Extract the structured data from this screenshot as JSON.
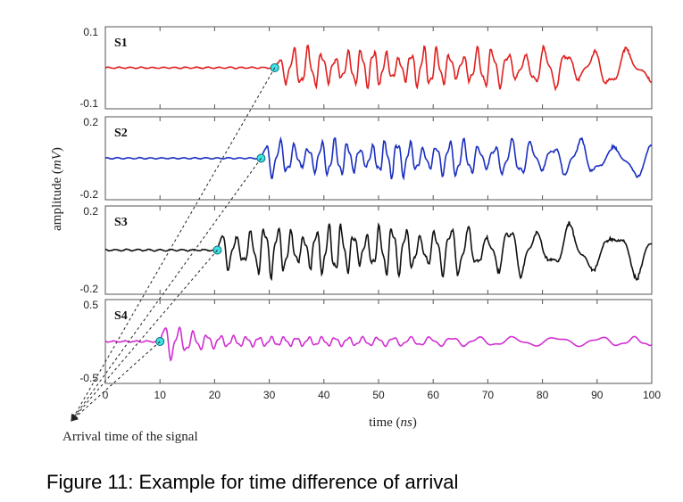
{
  "caption": "Figure 11: Example for time difference of arrival",
  "chart_data": {
    "type": "line",
    "xlabel": "time (ns)",
    "xlabel_main": "time",
    "xlabel_unit": "ns",
    "ylabel": "amplitude (mV)",
    "ylabel_main": "amplitude",
    "ylabel_unit": "mV",
    "xlim": [
      0,
      100
    ],
    "x_ticks": [
      "0",
      "10",
      "20",
      "30",
      "40",
      "50",
      "60",
      "70",
      "80",
      "90",
      "100"
    ],
    "annotation": "Arrival time of the signal",
    "panels": [
      {
        "name": "S1",
        "color": "#e02020",
        "ylim": [
          -0.1,
          0.1
        ],
        "y_tick_top": "0.1",
        "y_tick_bottom": "-0.1",
        "arrival_time": 31,
        "peak_amplitude": 0.06,
        "samples": [
          [
            0,
            0.0
          ],
          [
            10,
            0.0
          ],
          [
            20,
            0.0
          ],
          [
            30,
            0.0
          ],
          [
            31,
            0.0
          ],
          [
            34,
            0.05
          ],
          [
            36,
            -0.05
          ],
          [
            45,
            -0.015
          ],
          [
            55,
            0.04
          ],
          [
            66,
            -0.055
          ],
          [
            75,
            0.05
          ],
          [
            80,
            0.06
          ],
          [
            88,
            -0.045
          ],
          [
            100,
            0.02
          ]
        ]
      },
      {
        "name": "S2",
        "color": "#1a2fbf",
        "ylim": [
          -0.2,
          0.2
        ],
        "y_tick_top": "0.2",
        "y_tick_bottom": "-0.2",
        "arrival_time": 28.5,
        "peak_amplitude": 0.11,
        "samples": [
          [
            0,
            0.0
          ],
          [
            10,
            0.0
          ],
          [
            20,
            0.0
          ],
          [
            28.5,
            0.0
          ],
          [
            31,
            -0.11
          ],
          [
            37,
            0.07
          ],
          [
            45,
            0.08
          ],
          [
            50,
            -0.1
          ],
          [
            60,
            0.06
          ],
          [
            70,
            0.05
          ],
          [
            85,
            0.07
          ],
          [
            96,
            0.08
          ],
          [
            100,
            0.03
          ]
        ]
      },
      {
        "name": "S3",
        "color": "#111111",
        "ylim": [
          -0.2,
          0.2
        ],
        "y_tick_top": "0.2",
        "y_tick_bottom": "-0.2",
        "arrival_time": 20.5,
        "peak_amplitude": 0.14,
        "samples": [
          [
            0,
            0.0
          ],
          [
            10,
            0.0
          ],
          [
            20.5,
            0.0
          ],
          [
            30,
            0.06
          ],
          [
            36,
            -0.1
          ],
          [
            40,
            0.1
          ],
          [
            48,
            0.02
          ],
          [
            60,
            0.09
          ],
          [
            70,
            -0.08
          ],
          [
            83,
            0.14
          ],
          [
            84,
            -0.14
          ],
          [
            95,
            0.06
          ],
          [
            100,
            0.03
          ]
        ]
      },
      {
        "name": "S4",
        "color": "#d12fd1",
        "ylim": [
          -0.5,
          0.5
        ],
        "y_tick_top": "0.5",
        "y_tick_bottom": "-0.5",
        "arrival_time": 10,
        "peak_amplitude": 0.33,
        "samples": [
          [
            0,
            0.0
          ],
          [
            10,
            0.0
          ],
          [
            14,
            0.32
          ],
          [
            15,
            -0.27
          ],
          [
            20,
            0.12
          ],
          [
            30,
            0.08
          ],
          [
            45,
            0.04
          ],
          [
            60,
            0.04
          ],
          [
            75,
            0.05
          ],
          [
            90,
            0.05
          ],
          [
            100,
            0.01
          ]
        ]
      }
    ],
    "grid": false,
    "legend": "none"
  }
}
